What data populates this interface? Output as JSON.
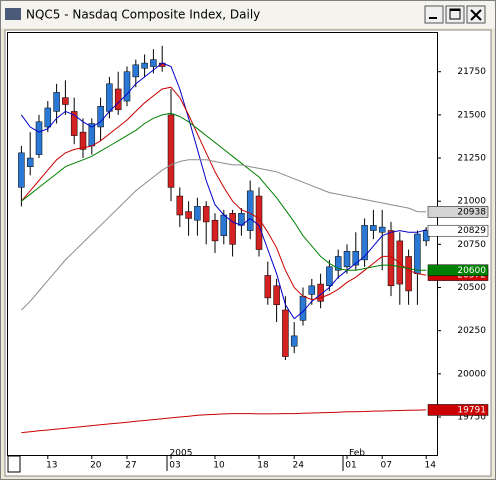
{
  "chart_data": {
    "type": "candlestick",
    "title": "NQC5 - Nasdaq Composite Index, Daily",
    "categories": [
      null,
      null,
      null,
      "13",
      null,
      null,
      null,
      null,
      "20",
      null,
      null,
      null,
      "27",
      null,
      null,
      null,
      null,
      "03",
      null,
      null,
      null,
      null,
      "10",
      null,
      null,
      null,
      null,
      "18",
      null,
      null,
      null,
      "24",
      null,
      null,
      null,
      null,
      null,
      "01",
      null,
      null,
      null,
      "07",
      null,
      null,
      null,
      null,
      "14"
    ],
    "upper_categories": [
      null,
      null,
      null,
      null,
      null,
      null,
      null,
      null,
      null,
      null,
      null,
      null,
      null,
      null,
      null,
      null,
      null,
      "2005",
      null,
      null,
      null,
      null,
      null,
      null,
      null,
      null,
      null,
      null,
      null,
      null,
      null,
      null,
      null,
      null,
      null,
      null,
      null,
      "Feb",
      null,
      null,
      null,
      null,
      null,
      null,
      null,
      null,
      null
    ],
    "ohlc": {
      "open": [
        2108,
        2120,
        2127,
        2143,
        2152,
        2160,
        2152,
        2140,
        2132,
        2143,
        2152,
        2165,
        2158,
        2172,
        2177,
        2178,
        2180,
        2150,
        2103,
        2094,
        2089,
        2097,
        2089,
        2080,
        2093,
        2086,
        2083,
        2103,
        2057,
        2051,
        2037,
        2016,
        2031,
        2046,
        2052,
        2051,
        2060,
        2062,
        2063,
        2066,
        2083,
        2082,
        2083,
        2077,
        2068,
        2058,
        2077
      ],
      "high": [
        2132,
        2140,
        2150,
        2158,
        2168,
        2170,
        2160,
        2148,
        2148,
        2160,
        2172,
        2175,
        2178,
        2182,
        2185,
        2188,
        2190,
        2165,
        2108,
        2100,
        2102,
        2100,
        2093,
        2095,
        2095,
        2096,
        2112,
        2108,
        2065,
        2055,
        2045,
        2030,
        2050,
        2055,
        2058,
        2066,
        2072,
        2075,
        2082,
        2090,
        2095,
        2095,
        2088,
        2082,
        2072,
        2083,
        2085
      ],
      "low": [
        2097,
        2115,
        2125,
        2140,
        2145,
        2150,
        2133,
        2125,
        2127,
        2135,
        2148,
        2150,
        2155,
        2166,
        2172,
        2174,
        2175,
        2100,
        2085,
        2080,
        2080,
        2075,
        2070,
        2075,
        2068,
        2080,
        2078,
        2068,
        2040,
        2030,
        2008,
        2012,
        2028,
        2040,
        2038,
        2048,
        2055,
        2058,
        2060,
        2062,
        2078,
        2060,
        2045,
        2040,
        2040,
        2040,
        2074
      ],
      "close": [
        2128,
        2125,
        2146,
        2154,
        2163,
        2156,
        2138,
        2130,
        2145,
        2155,
        2168,
        2153,
        2175,
        2179,
        2180,
        2182,
        2178,
        2108,
        2092,
        2090,
        2097,
        2088,
        2077,
        2092,
        2075,
        2093,
        2106,
        2072,
        2044,
        2040,
        2010,
        2022,
        2045,
        2051,
        2042,
        2062,
        2068,
        2071,
        2071,
        2086,
        2086,
        2085,
        2051,
        2052,
        2048,
        2081,
        2082.9
      ],
      "close_label": "20829",
      "up_color": "#2a78d4",
      "down_color": "#d42222"
    },
    "series": [
      {
        "color": "#0000cc",
        "values": [
          2150,
          2143,
          2140,
          2142,
          2148,
          2152,
          2150,
          2146,
          2143,
          2146,
          2152,
          2157,
          2162,
          2168,
          2172,
          2176,
          2180,
          2178,
          2165,
          2148,
          2130,
          2112,
          2098,
          2092,
          2088,
          2086,
          2090,
          2086,
          2072,
          2058,
          2040,
          2032,
          2036,
          2042,
          2046,
          2050,
          2056,
          2060,
          2064,
          2068,
          2074,
          2080,
          2082,
          2083,
          2082,
          2082,
          2083.5
        ]
      },
      {
        "color": "#cc0000",
        "values": [
          2100,
          2106,
          2112,
          2118,
          2124,
          2128,
          2130,
          2131,
          2132,
          2135,
          2139,
          2143,
          2147,
          2152,
          2157,
          2161,
          2165,
          2166,
          2160,
          2150,
          2139,
          2128,
          2117,
          2108,
          2100,
          2095,
          2093,
          2090,
          2082,
          2073,
          2060,
          2050,
          2045,
          2043,
          2044,
          2046,
          2049,
          2053,
          2056,
          2060,
          2064,
          2068,
          2068,
          2064,
          2060,
          2058,
          2057.2
        ],
        "last_label": "20572"
      },
      {
        "color": "#008000",
        "values": [
          2100,
          2104,
          2108,
          2112,
          2116,
          2120,
          2122,
          2124,
          2126,
          2129,
          2132,
          2135,
          2138,
          2141,
          2145,
          2148,
          2150,
          2151,
          2149,
          2146,
          2142,
          2138,
          2134,
          2130,
          2126,
          2122,
          2118,
          2114,
          2108,
          2102,
          2095,
          2088,
          2080,
          2074,
          2068,
          2064,
          2061,
          2060,
          2060,
          2061,
          2062,
          2063,
          2063,
          2062,
          2061,
          2060,
          2060.0
        ],
        "last_label": "20600"
      },
      {
        "color": "#8c8c8c",
        "values": [
          2037,
          2042,
          2048,
          2054,
          2060,
          2066,
          2071,
          2076,
          2081,
          2086,
          2091,
          2096,
          2101,
          2106,
          2110,
          2114,
          2118,
          2121,
          2123,
          2124,
          2124,
          2124,
          2123,
          2122,
          2121,
          2121,
          2120,
          2119,
          2118,
          2117,
          2115,
          2113,
          2111,
          2109,
          2107,
          2105,
          2104,
          2103,
          2102,
          2101,
          2100,
          2099,
          2098,
          2097,
          2096,
          2094,
          2093.8
        ],
        "last_label": "20938"
      },
      {
        "color": "#cc0000",
        "values": [
          1966,
          1966.5,
          1967,
          1967.5,
          1968,
          1968.5,
          1969,
          1969.5,
          1970,
          1970.5,
          1971,
          1971.5,
          1972,
          1972.5,
          1973,
          1973.5,
          1974,
          1974.5,
          1975,
          1975.5,
          1976,
          1976.3,
          1976.5,
          1976.8,
          1977,
          1977,
          1977,
          1976.8,
          1976.8,
          1976.9,
          1977,
          1977,
          1977.2,
          1977.3,
          1977.5,
          1977.6,
          1977.8,
          1978,
          1978.1,
          1978.2,
          1978.4,
          1978.5,
          1978.6,
          1978.8,
          1978.9,
          1979,
          1979.1
        ],
        "last_label": "19791"
      }
    ],
    "ylim": [
      1953,
      2198
    ],
    "yticks": [
      {
        "value": 1975,
        "label": "19750"
      },
      {
        "value": 2000,
        "label": "20000"
      },
      {
        "value": 2025,
        "label": "20250"
      },
      {
        "value": 2050,
        "label": "20500"
      },
      {
        "value": 2075,
        "label": "20750"
      },
      {
        "value": 2100,
        "label": "21000"
      },
      {
        "value": 2125,
        "label": "21250"
      },
      {
        "value": 2150,
        "label": "21500"
      },
      {
        "value": 2175,
        "label": "21750"
      }
    ],
    "grid": false
  }
}
